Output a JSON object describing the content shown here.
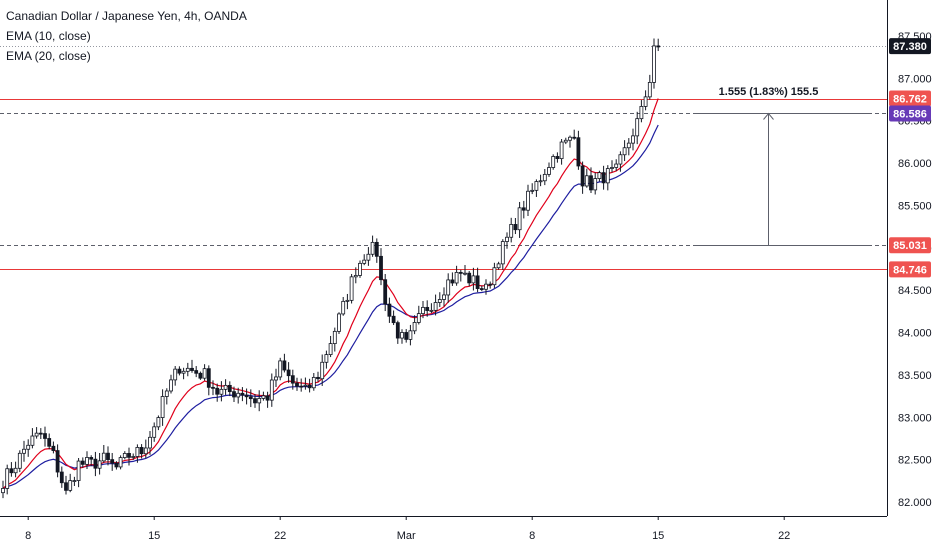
{
  "legend": {
    "title": "Canadian Dollar / Japanese Yen, 4h, OANDA",
    "ema10": "EMA (10, close)",
    "ema20": "EMA (20, close)"
  },
  "colors": {
    "up": "#ffffff",
    "down": "#131722",
    "ema10": "#e0001b",
    "ema20": "#1e1ea0",
    "hline_red": "#e83838",
    "hline_dash": "#5d606b",
    "tag_red": "#ef5350",
    "tag_purple": "#673ab7",
    "tag_black": "#131722"
  },
  "measure": {
    "label": "1.555 (1.83%) 155.5"
  },
  "price_tags": [
    {
      "value": 87.38,
      "text": "87.380",
      "color": "#131722",
      "line": "dotted"
    },
    {
      "value": 86.762,
      "text": "86.762",
      "color": "#ef5350",
      "line": "solid-red"
    },
    {
      "value": 86.586,
      "text": "86.586",
      "color": "#673ab7",
      "line": "dashed"
    },
    {
      "value": 85.031,
      "text": "85.031",
      "color": "#ef5350",
      "line": "dashed"
    },
    {
      "value": 84.746,
      "text": "84.746",
      "color": "#ef5350",
      "line": "solid-red"
    }
  ],
  "chart_data": {
    "type": "candlestick",
    "symbol": "CADJPY",
    "timeframe": "4h",
    "y_ticks": [
      "82.000",
      "82.500",
      "83.000",
      "83.500",
      "84.000",
      "84.500",
      "85.000",
      "85.500",
      "86.000",
      "86.500",
      "87.000",
      "87.500"
    ],
    "ylim": [
      81.94,
      87.7
    ],
    "x_ticks": [
      {
        "label": "8",
        "idx": 6
      },
      {
        "label": "15",
        "idx": 36
      },
      {
        "label": "22",
        "idx": 66
      },
      {
        "label": "Mar",
        "idx": 96
      },
      {
        "label": "8",
        "idx": 126
      },
      {
        "label": "15",
        "idx": 156
      },
      {
        "label": "22",
        "idx": 186
      }
    ],
    "anchors": [
      [
        0,
        82.25
      ],
      [
        3,
        82.45
      ],
      [
        6,
        82.7
      ],
      [
        9,
        82.8
      ],
      [
        12,
        82.55
      ],
      [
        15,
        82.1
      ],
      [
        18,
        82.45
      ],
      [
        21,
        82.45
      ],
      [
        24,
        82.5
      ],
      [
        27,
        82.4
      ],
      [
        30,
        82.55
      ],
      [
        33,
        82.6
      ],
      [
        36,
        82.9
      ],
      [
        39,
        83.3
      ],
      [
        42,
        83.6
      ],
      [
        45,
        83.55
      ],
      [
        48,
        83.5
      ],
      [
        51,
        83.3
      ],
      [
        54,
        83.3
      ],
      [
        57,
        83.3
      ],
      [
        60,
        83.2
      ],
      [
        63,
        83.25
      ],
      [
        66,
        83.6
      ],
      [
        69,
        83.4
      ],
      [
        72,
        83.3
      ],
      [
        75,
        83.5
      ],
      [
        78,
        83.9
      ],
      [
        81,
        84.3
      ],
      [
        84,
        84.75
      ],
      [
        87,
        85.0
      ],
      [
        89,
        84.95
      ],
      [
        90,
        84.6
      ],
      [
        92,
        84.2
      ],
      [
        94,
        84.0
      ],
      [
        96,
        83.85
      ],
      [
        98,
        84.05
      ],
      [
        100,
        84.25
      ],
      [
        103,
        84.4
      ],
      [
        106,
        84.6
      ],
      [
        109,
        84.7
      ],
      [
        112,
        84.6
      ],
      [
        115,
        84.5
      ],
      [
        118,
        84.9
      ],
      [
        121,
        85.2
      ],
      [
        124,
        85.5
      ],
      [
        127,
        85.75
      ],
      [
        130,
        86.0
      ],
      [
        133,
        86.2
      ],
      [
        136,
        86.3
      ],
      [
        138,
        85.8
      ],
      [
        140,
        85.75
      ],
      [
        143,
        85.85
      ],
      [
        146,
        85.9
      ],
      [
        149,
        86.25
      ],
      [
        152,
        86.6
      ],
      [
        154,
        87.0
      ],
      [
        155,
        87.4
      ],
      [
        156,
        87.38
      ]
    ],
    "ema10_end": 86.762,
    "ema20_end": 86.45,
    "last_price": 87.38
  }
}
